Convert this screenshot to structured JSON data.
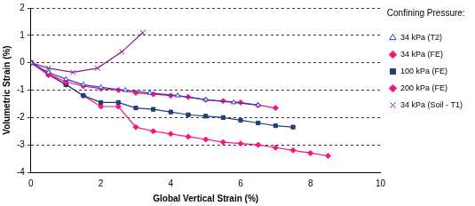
{
  "chart_data": {
    "type": "line",
    "x_label": "Global Vertical Strain (%)",
    "y_label": "Volumetric Strain (%)",
    "legend_title": "Confining Pressure:",
    "legend": "right",
    "grid": true,
    "xlim": [
      0,
      10
    ],
    "xticks": [
      0,
      2,
      4,
      6,
      8,
      10
    ],
    "ylim": [
      -4,
      2
    ],
    "yticks": [
      -4,
      -3,
      -2,
      -1,
      0,
      1,
      2
    ],
    "series": [
      {
        "name": "34 kPa (T2)",
        "color": "#2a3fc4",
        "marker": "triangle_open",
        "line_style": "solid",
        "x": [
          0,
          0.5,
          1,
          1.5,
          2,
          2.7,
          3.4,
          4.2,
          5,
          5.8,
          6.5
        ],
        "values": [
          0,
          -0.35,
          -0.6,
          -0.8,
          -0.9,
          -1.0,
          -1.1,
          -1.2,
          -1.35,
          -1.45,
          -1.55
        ]
      },
      {
        "name": "34 kPa (FE)",
        "color": "#ff0f7f",
        "marker": "diamond",
        "line_style": "solid",
        "x": [
          0,
          0.5,
          1,
          1.5,
          2,
          2.5,
          3,
          3.5,
          4,
          4.5,
          5,
          5.5,
          6,
          6.5,
          7
        ],
        "values": [
          0,
          -0.4,
          -0.7,
          -0.85,
          -0.95,
          -1.0,
          -1.1,
          -1.15,
          -1.2,
          -1.25,
          -1.35,
          -1.4,
          -1.45,
          -1.55,
          -1.65
        ]
      },
      {
        "name": "100 kPa (FE)",
        "color": "#1f3f7a",
        "marker": "square",
        "line_style": "solid",
        "x": [
          0,
          0.5,
          1,
          1.5,
          2,
          2.5,
          3,
          3.5,
          4,
          4.5,
          5,
          5.5,
          6,
          6.5,
          7,
          7.5
        ],
        "values": [
          0,
          -0.4,
          -0.8,
          -1.2,
          -1.45,
          -1.45,
          -1.65,
          -1.7,
          -1.8,
          -1.9,
          -1.95,
          -2.0,
          -2.1,
          -2.2,
          -2.3,
          -2.35
        ]
      },
      {
        "name": "200 kPa (FE)",
        "color": "#ff0f7f",
        "marker": "diamond",
        "line_style": "solid",
        "x": [
          0,
          0.5,
          1,
          1.5,
          2,
          2.5,
          3,
          3.5,
          4,
          4.5,
          5,
          5.5,
          6,
          6.5,
          7,
          7.5,
          8,
          8.5
        ],
        "values": [
          0,
          -0.45,
          -0.8,
          -1.2,
          -1.6,
          -1.6,
          -2.35,
          -2.5,
          -2.6,
          -2.7,
          -2.8,
          -2.9,
          -2.95,
          -3.0,
          -3.1,
          -3.2,
          -3.3,
          -3.4
        ]
      },
      {
        "name": "34 kPa (Soil - T1)",
        "color": "#8a1a8a",
        "marker": "x",
        "line_style": "solid",
        "x": [
          0,
          0.5,
          1.2,
          1.9,
          2.6,
          3.2
        ],
        "values": [
          0,
          -0.2,
          -0.35,
          -0.2,
          0.4,
          1.1
        ]
      }
    ]
  }
}
